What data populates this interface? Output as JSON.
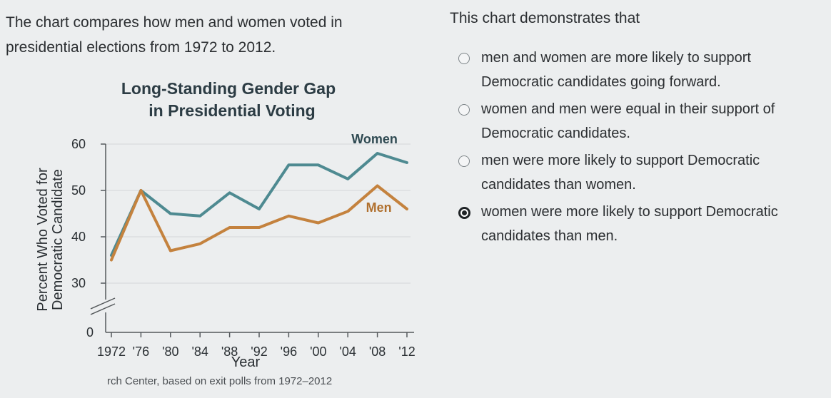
{
  "intro_text": "The chart compares how men and women voted in presidential elections from 1972 to 2012.",
  "question": {
    "prompt": "This chart demonstrates that",
    "options": [
      {
        "label": "men and women are more likely to support Democratic candidates going forward.",
        "selected": false
      },
      {
        "label": "women and men were equal in their support of Democratic candidates.",
        "selected": false
      },
      {
        "label": "men were more likely to support Democratic candidates than women.",
        "selected": false
      },
      {
        "label": "women were more likely to support Democratic candidates than men.",
        "selected": true
      }
    ]
  },
  "source_text": "rch Center, based on exit polls from 1972–2012",
  "chart_data": {
    "type": "line",
    "title_line1": "Long-Standing Gender Gap",
    "title_line2": "in Presidential Voting",
    "ylabel_line1": "Percent Who Voted for",
    "ylabel_line2": "Democratic Candidate",
    "xlabel": "Year",
    "x_tick_labels": [
      "1972",
      "'76",
      "'80",
      "'84",
      "'88",
      "'92",
      "'96",
      "'00",
      "'04",
      "'08",
      "'12"
    ],
    "x": [
      1972,
      1976,
      1980,
      1984,
      1988,
      1992,
      1996,
      2000,
      2004,
      2008,
      2012
    ],
    "y_ticks": [
      30,
      40,
      50,
      60
    ],
    "y_zero_label": "0",
    "ylim": [
      30,
      60
    ],
    "axis_break": true,
    "series": [
      {
        "name": "Women",
        "color": "#4e8a91",
        "values": [
          36,
          50,
          45,
          44.5,
          49.5,
          46,
          55.5,
          55.5,
          52.5,
          58,
          56
        ]
      },
      {
        "name": "Men",
        "color": "#c4823e",
        "values": [
          35,
          50,
          37,
          38.5,
          42,
          42,
          44.5,
          43,
          45.5,
          51,
          46
        ]
      }
    ],
    "grid": true
  }
}
